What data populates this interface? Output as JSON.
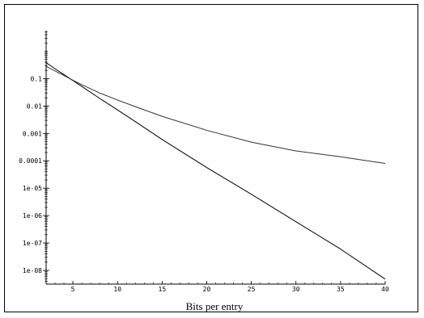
{
  "chart_data": {
    "type": "line",
    "title": "",
    "xlabel": "Bits per entry",
    "ylabel": "",
    "xlim": [
      2,
      40
    ],
    "ylim_log10": [
      -8.5,
      0.75
    ],
    "y_scale": "log",
    "grid": false,
    "x_ticks": [
      5,
      10,
      15,
      20,
      25,
      30,
      35,
      40
    ],
    "x_tick_labels": [
      "5",
      "10",
      "15",
      "20",
      "25",
      "30",
      "35",
      "40"
    ],
    "y_ticks_log10": [
      -1,
      -2,
      -3,
      -4,
      -5,
      -6,
      -7,
      -8
    ],
    "y_tick_labels": [
      "0.1",
      "0.01",
      "0.001",
      "0.0001",
      "1e-05",
      "1e-06",
      "1e-07",
      "1e-08"
    ],
    "series": [
      {
        "x": [
          2,
          3,
          4,
          5,
          6,
          8,
          10,
          12,
          15,
          20,
          25,
          30,
          35,
          40
        ],
        "y": [
          0.38,
          0.23,
          0.14,
          0.085,
          0.052,
          0.019,
          0.0072,
          0.0027,
          0.0006,
          5.7e-05,
          6e-06,
          6e-07,
          6e-08,
          4.8e-09
        ]
      },
      {
        "x": [
          2,
          3,
          4,
          5,
          6,
          8,
          10,
          12,
          15,
          20,
          25,
          30,
          35,
          40
        ],
        "y": [
          0.28,
          0.19,
          0.13,
          0.087,
          0.06,
          0.03,
          0.0165,
          0.0095,
          0.0042,
          0.0013,
          0.00048,
          0.00023,
          0.00014,
          8e-05
        ]
      }
    ],
    "colors": {
      "axis": "#000000",
      "line_steep": "#000000",
      "line_shallow": "#333333"
    }
  }
}
